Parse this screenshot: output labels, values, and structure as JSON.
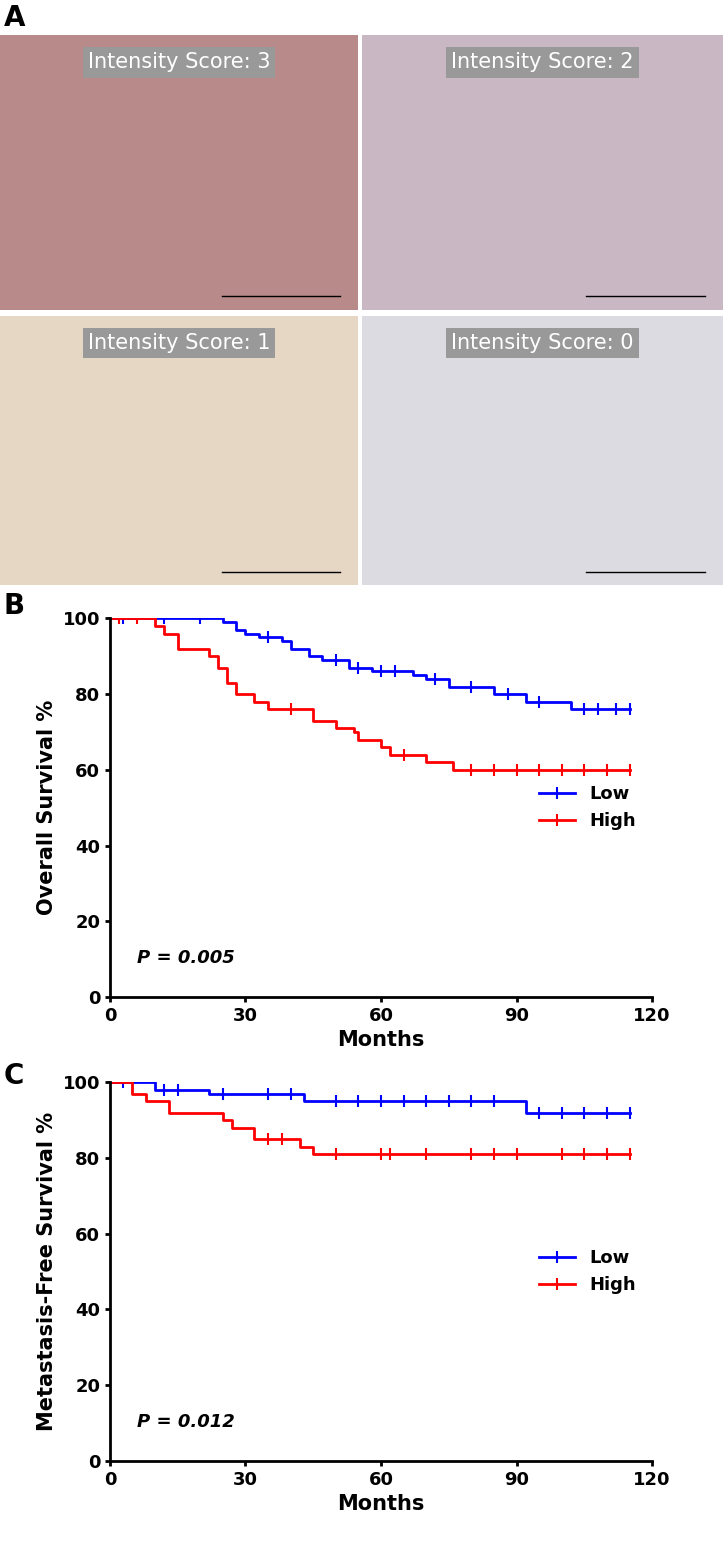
{
  "figure": {
    "panel_labels": [
      "A",
      "B",
      "C"
    ]
  },
  "images": [
    {
      "label": "Intensity Score: 3",
      "color": "#b98a8a"
    },
    {
      "label": "Intensity Score: 2",
      "color": "#c9b8c4"
    },
    {
      "label": "Intensity Score: 1",
      "color": "#e6d6c4"
    },
    {
      "label": "Intensity Score: 0",
      "color": "#dcdbe2"
    }
  ],
  "chart_data": [
    {
      "type": "step",
      "xlabel": "Months",
      "ylabel": "Overall Survival %",
      "xlim": [
        0,
        120
      ],
      "xticks": [
        0,
        30,
        60,
        90,
        120
      ],
      "ylim": [
        0,
        100
      ],
      "yticks": [
        0,
        20,
        40,
        60,
        80,
        100
      ],
      "legend": "center right",
      "annotation": "P = 0.005",
      "series": [
        {
          "name": "Low",
          "color": "#0000ff",
          "marker": "|",
          "x": [
            0,
            25,
            28,
            30,
            33,
            38,
            40,
            44,
            47,
            53,
            58,
            67,
            70,
            75,
            85,
            92,
            102,
            115
          ],
          "values": [
            100,
            99,
            97,
            96,
            95,
            94,
            92,
            90,
            89,
            87,
            86,
            85,
            84,
            82,
            80,
            78,
            76,
            76
          ],
          "censored": [
            3,
            12,
            20,
            35,
            50,
            55,
            60,
            63,
            72,
            80,
            88,
            95,
            105,
            108,
            112,
            115
          ]
        },
        {
          "name": "High",
          "color": "#ff0000",
          "marker": "|",
          "x": [
            0,
            8,
            10,
            12,
            15,
            22,
            24,
            26,
            28,
            32,
            35,
            45,
            50,
            54,
            55,
            60,
            62,
            70,
            76,
            115
          ],
          "values": [
            100,
            100,
            98,
            96,
            92,
            90,
            87,
            83,
            80,
            78,
            76,
            73,
            71,
            70,
            68,
            66,
            64,
            62,
            60,
            60
          ],
          "censored": [
            2,
            6,
            40,
            65,
            80,
            85,
            90,
            95,
            100,
            105,
            110,
            115
          ]
        }
      ]
    },
    {
      "type": "step",
      "xlabel": "Months",
      "ylabel": "Metastasis-Free Survival %",
      "xlim": [
        0,
        120
      ],
      "xticks": [
        0,
        30,
        60,
        90,
        120
      ],
      "ylim": [
        0,
        100
      ],
      "yticks": [
        0,
        20,
        40,
        60,
        80,
        100
      ],
      "legend": "center right",
      "annotation": "P = 0.012",
      "series": [
        {
          "name": "Low",
          "color": "#0000ff",
          "marker": "|",
          "x": [
            0,
            10,
            22,
            43,
            92,
            115
          ],
          "values": [
            100,
            98,
            97,
            95,
            92,
            92
          ],
          "censored": [
            3,
            12,
            15,
            25,
            35,
            40,
            50,
            55,
            60,
            65,
            70,
            75,
            80,
            85,
            95,
            100,
            105,
            110,
            115
          ]
        },
        {
          "name": "High",
          "color": "#ff0000",
          "marker": "|",
          "x": [
            0,
            5,
            8,
            13,
            25,
            27,
            32,
            42,
            45,
            115
          ],
          "values": [
            100,
            97,
            95,
            92,
            90,
            88,
            85,
            83,
            81,
            81
          ],
          "censored": [
            35,
            38,
            50,
            60,
            62,
            70,
            80,
            85,
            90,
            100,
            105,
            110,
            115
          ]
        }
      ]
    }
  ]
}
